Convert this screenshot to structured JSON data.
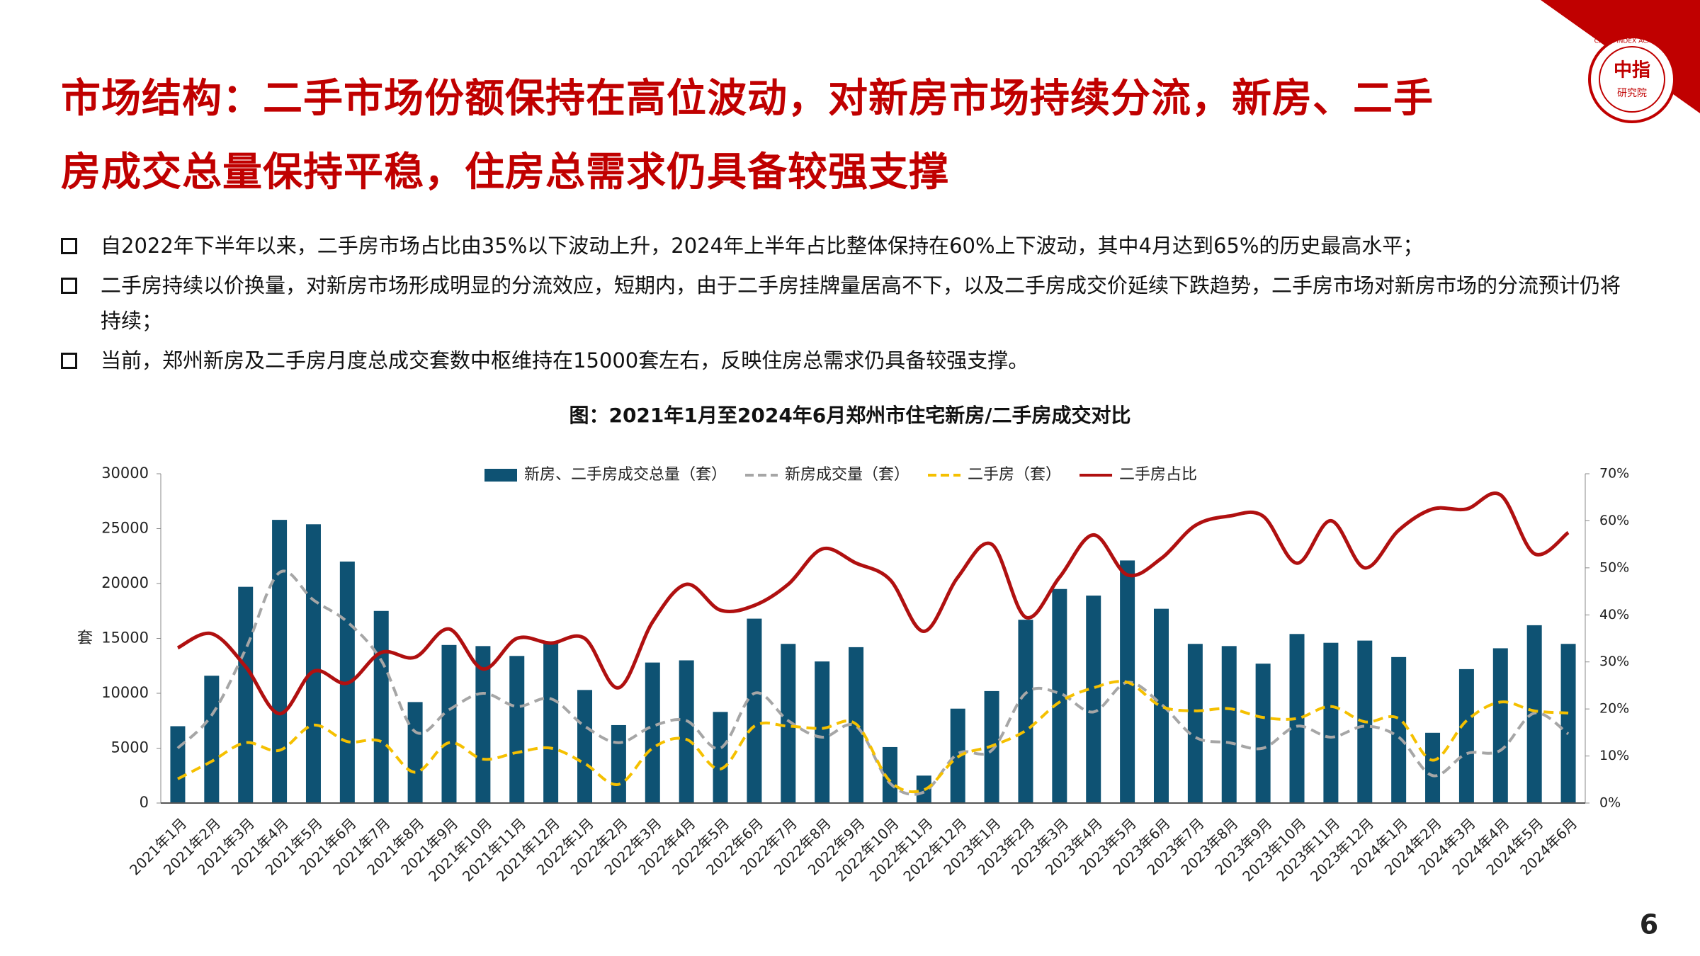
{
  "title": [
    "市场结构：二手市场份额保持在高位波动，对新房市场持续分流，新房、二手",
    "房成交总量保持平稳，住房总需求仍具备较强支撑"
  ],
  "bullets": [
    "自2022年下半年以来，二手房市场占比由35%以下波动上升，2024年上半年占比整体保持在60%上下波动，其中4月达到65%的历史最高水平；",
    "二手房持续以价换量，对新房市场形成明显的分流效应，短期内，由于二手房挂牌量居高不下，以及二手房成交价延续下跌趋势，二手房市场对新房市场的分流预计仍将持续；",
    "当前，郑州新房及二手房月度总成交套数中枢维持在15000套左右，反映住房总需求仍具备较强支撑。"
  ],
  "logo": {
    "name": "中指",
    "sub": "研究院",
    "ring": "CHINA INDEX ACADEMY"
  },
  "page_number": "6",
  "chart_data": {
    "type": "combo",
    "title": "图：2021年1月至2024年6月郑州市住宅新房/二手房成交对比",
    "y_label": "套",
    "categories": [
      "2021年1月",
      "2021年2月",
      "2021年3月",
      "2021年4月",
      "2021年5月",
      "2021年6月",
      "2021年7月",
      "2021年8月",
      "2021年9月",
      "2021年10月",
      "2021年11月",
      "2021年12月",
      "2022年1月",
      "2022年2月",
      "2022年3月",
      "2022年4月",
      "2022年5月",
      "2022年6月",
      "2022年7月",
      "2022年8月",
      "2022年9月",
      "2022年10月",
      "2022年11月",
      "2022年12月",
      "2023年1月",
      "2023年2月",
      "2023年3月",
      "2023年4月",
      "2023年5月",
      "2023年6月",
      "2023年7月",
      "2023年8月",
      "2023年9月",
      "2023年10月",
      "2023年11月",
      "2023年12月",
      "2024年1月",
      "2024年2月",
      "2024年3月",
      "2024年4月",
      "2024年5月",
      "2024年6月"
    ],
    "series": [
      {
        "name": "新房、二手房成交总量（套）",
        "type": "bar",
        "color": "#0e5273",
        "values": [
          7000,
          11600,
          19700,
          25800,
          25400,
          22000,
          17500,
          9200,
          14400,
          14300,
          13400,
          14700,
          10300,
          7100,
          12800,
          13000,
          8300,
          16800,
          14500,
          12900,
          14200,
          5100,
          2500,
          8600,
          10200,
          16700,
          19500,
          18900,
          22100,
          17700,
          14500,
          14300,
          12700,
          15400,
          14600,
          14800,
          13300,
          6400,
          12200,
          14100,
          16200,
          14500
        ]
      },
      {
        "name": "新房成交量（套）",
        "type": "line",
        "dash": true,
        "color": "#a6a6a6",
        "values": [
          5000,
          8000,
          14000,
          21000,
          18500,
          16500,
          13000,
          6500,
          8500,
          10000,
          8800,
          9500,
          7000,
          5500,
          7000,
          7500,
          5000,
          10000,
          7500,
          6000,
          7000,
          1800,
          1000,
          4500,
          4800,
          10000,
          10000,
          8300,
          11000,
          9000,
          6000,
          5500,
          5000,
          7000,
          6000,
          7000,
          6000,
          2500,
          4500,
          4800,
          8200,
          6300
        ]
      },
      {
        "name": "二手房（套）",
        "type": "line",
        "dash": true,
        "color": "#f5c000",
        "values": [
          2200,
          3800,
          5500,
          4800,
          7100,
          5600,
          5600,
          2800,
          5500,
          4000,
          4600,
          5000,
          3600,
          1700,
          5000,
          5800,
          3100,
          7000,
          7000,
          6800,
          7200,
          2000,
          1200,
          4200,
          5200,
          6600,
          9200,
          10500,
          11000,
          8800,
          8400,
          8600,
          7800,
          7700,
          8800,
          7400,
          7700,
          3900,
          7500,
          9200,
          8400,
          8200
        ]
      },
      {
        "name": "二手房占比",
        "type": "line",
        "axis": "y2",
        "color": "#b01010",
        "values": [
          33,
          36,
          29,
          19,
          28,
          25.5,
          32,
          31,
          37,
          28.5,
          35,
          34,
          35,
          24.5,
          38.5,
          46.5,
          41,
          42,
          46.5,
          54,
          51,
          47.5,
          36.5,
          48,
          55,
          39.5,
          48,
          57,
          48.5,
          52,
          59,
          61,
          61,
          51,
          60,
          50,
          58,
          62.5,
          62.5,
          65.5,
          53,
          57.5
        ]
      }
    ],
    "ylim": [
      0,
      30000
    ],
    "yticks": [
      0,
      5000,
      10000,
      15000,
      20000,
      25000,
      30000
    ],
    "y2lim": [
      0,
      70
    ],
    "y2ticks": [
      {
        "value": 0,
        "label": "0%"
      },
      {
        "value": 10,
        "label": "10%"
      },
      {
        "value": 20,
        "label": "20%"
      },
      {
        "value": 30,
        "label": "30%"
      },
      {
        "value": 40,
        "label": "40%"
      },
      {
        "value": 50,
        "label": "50%"
      },
      {
        "value": 60,
        "label": "60%"
      },
      {
        "value": 70,
        "label": "70%"
      }
    ],
    "legend": "top"
  }
}
